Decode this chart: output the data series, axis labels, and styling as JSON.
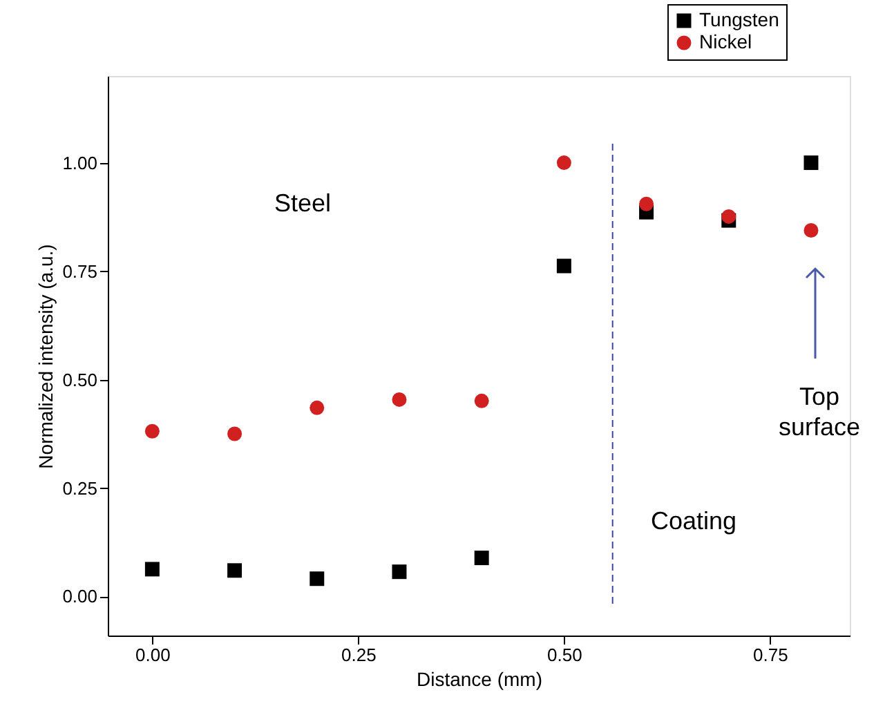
{
  "chart_data": {
    "type": "scatter",
    "xlabel": "Distance (mm)",
    "ylabel": "Normalized intensity (a.u.)",
    "x": [
      0.0,
      0.1,
      0.2,
      0.3,
      0.4,
      0.5,
      0.6,
      0.7,
      0.8
    ],
    "series": [
      {
        "name": "Tungsten",
        "color": "#000000",
        "marker": "square",
        "values": [
          0.063,
          0.06,
          0.041,
          0.057,
          0.089,
          0.762,
          0.886,
          0.867,
          1.0
        ]
      },
      {
        "name": "Nickel",
        "color": "#d12020",
        "marker": "circle",
        "values": [
          0.381,
          0.375,
          0.435,
          0.454,
          0.451,
          1.0,
          0.905,
          0.876,
          0.844
        ]
      }
    ],
    "xlim": [
      -0.054,
      0.847
    ],
    "ylim": [
      -0.09,
      1.2
    ],
    "xticks": [
      {
        "value": 0,
        "label": "0.00"
      },
      {
        "value": 0.25,
        "label": "0.25"
      },
      {
        "value": 0.5,
        "label": "0.50"
      },
      {
        "value": 0.75,
        "label": "0.75"
      }
    ],
    "yticks": [
      {
        "value": 0,
        "label": "0.00"
      },
      {
        "value": 0.25,
        "label": "0.25"
      },
      {
        "value": 0.5,
        "label": "0.50"
      },
      {
        "value": 0.75,
        "label": "0.75"
      },
      {
        "value": 1.0,
        "label": "1.00"
      }
    ],
    "ref_lines": [
      {
        "axis": "x",
        "value": 0.559,
        "color": "#3a4a9a",
        "line_style": "dashed"
      }
    ],
    "annotations": [
      "Steel",
      "Coating",
      "Top surface"
    ],
    "legend": "top right",
    "grid": false
  }
}
